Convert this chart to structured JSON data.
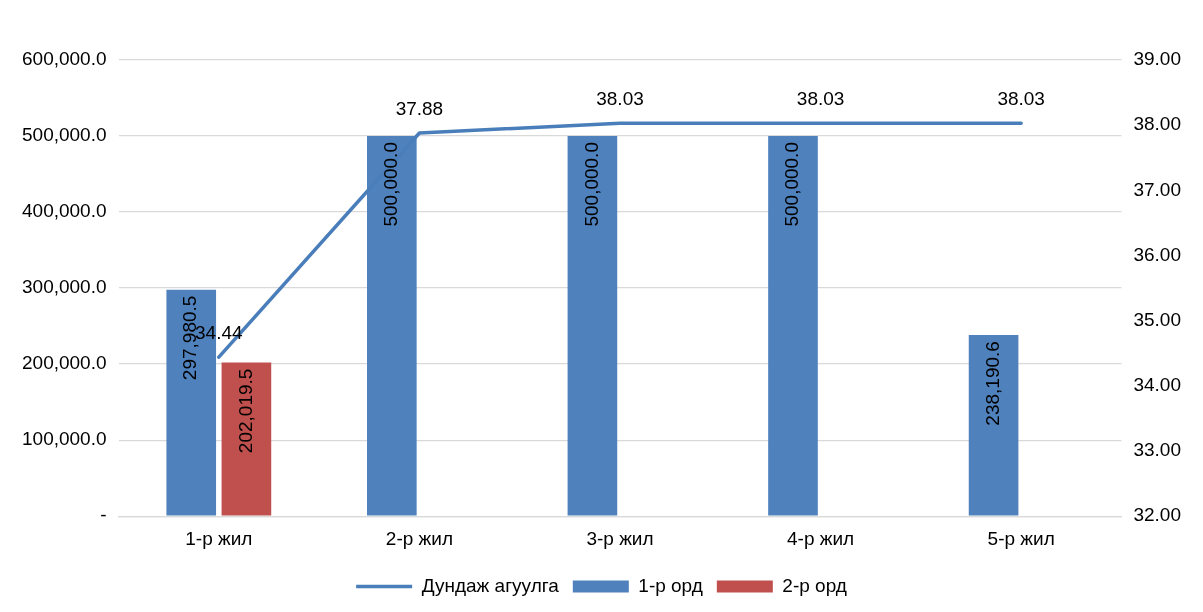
{
  "chart_data": {
    "type": "bar",
    "categories": [
      "1-р жил",
      "2-р жил",
      "3-р жил",
      "4-р жил",
      "5-р жил"
    ],
    "series": [
      {
        "name": "1-р орд",
        "color": "#4f81bd",
        "values": [
          297980.5,
          500000,
          500000,
          500000,
          238190.6
        ],
        "value_labels": [
          "297,980.5",
          "500,000.0",
          "500,000.0",
          "500,000.0",
          "238,190.6"
        ]
      },
      {
        "name": "2-р орд",
        "color": "#c0504d",
        "values": [
          202019.5,
          null,
          null,
          null,
          null
        ],
        "value_labels": [
          "202,019.5",
          null,
          null,
          null,
          null
        ]
      },
      {
        "name": "Дундаж агуулга",
        "type": "line",
        "axis": "y2",
        "color": "#4a7ebb",
        "values": [
          34.44,
          37.88,
          38.03,
          38.03,
          38.03
        ],
        "value_labels": [
          "34.44",
          "37.88",
          "38.03",
          "38.03",
          "38.03"
        ]
      }
    ],
    "ylim": [
      0,
      600000
    ],
    "yticks": [
      {
        "value": 0,
        "label": "-"
      },
      {
        "value": 100000,
        "label": "100,000.0"
      },
      {
        "value": 200000,
        "label": "200,000.0"
      },
      {
        "value": 300000,
        "label": "300,000.0"
      },
      {
        "value": 400000,
        "label": "400,000.0"
      },
      {
        "value": 500000,
        "label": "500,000.0"
      },
      {
        "value": 600000,
        "label": "600,000.0"
      }
    ],
    "y2lim": [
      32,
      39
    ],
    "y2ticks": [
      {
        "value": 32,
        "label": "32.00"
      },
      {
        "value": 33,
        "label": "33.00"
      },
      {
        "value": 34,
        "label": "34.00"
      },
      {
        "value": 35,
        "label": "35.00"
      },
      {
        "value": 36,
        "label": "36.00"
      },
      {
        "value": 37,
        "label": "37.00"
      },
      {
        "value": 38,
        "label": "38.00"
      },
      {
        "value": 39,
        "label": "39.00"
      }
    ],
    "grid": "y",
    "legend": "bottom",
    "marker": "none",
    "line_style": "solid"
  }
}
